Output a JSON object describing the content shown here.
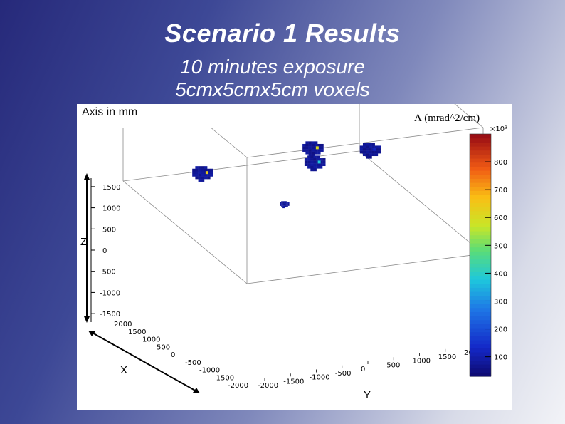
{
  "slide": {
    "title": "Scenario 1 Results",
    "subtitle_line1": "10 minutes exposure",
    "subtitle_line2": "5cmx5cmx5cm voxels",
    "axis_note": "Axis in mm"
  },
  "chart_data": {
    "type": "scatter",
    "title": "",
    "colorbar_label": "Λ (mrad^2/cm)",
    "colorbar_multiplier": "×10³",
    "colorbar_ticks": [
      100,
      200,
      300,
      400,
      500,
      600,
      700,
      800
    ],
    "colorbar_range": [
      30,
      900
    ],
    "axes": {
      "x": {
        "label": "X",
        "range": [
          -2000,
          2000
        ],
        "ticks": [
          2000,
          1500,
          1000,
          500,
          0,
          -500,
          -1000,
          -1500,
          -2000
        ]
      },
      "y": {
        "label": "Y",
        "range": [
          -2000,
          2000
        ],
        "ticks": [
          -2000,
          -1500,
          -1000,
          -500,
          0,
          500,
          1000,
          1500,
          2000
        ]
      },
      "z": {
        "label": "Z",
        "range": [
          -1700,
          1700
        ],
        "ticks": [
          1500,
          1000,
          500,
          0,
          -500,
          -1000,
          -1500
        ]
      }
    },
    "clusters": [
      {
        "x": 0,
        "y": -1700,
        "z": -150,
        "lambda": 60,
        "hot_value": 640
      },
      {
        "x": -700,
        "y": -200,
        "z": 700,
        "lambda": 55,
        "hot_value": 600
      },
      {
        "x": 0,
        "y": 200,
        "z": -250,
        "lambda": 60,
        "hot_value": 380
      },
      {
        "x": 500,
        "y": 1400,
        "z": -500,
        "lambda": 55,
        "hot_value": 120
      },
      {
        "x": 0,
        "y": -300,
        "z": -1300,
        "lambda": 65,
        "hot_value": 90
      }
    ]
  }
}
